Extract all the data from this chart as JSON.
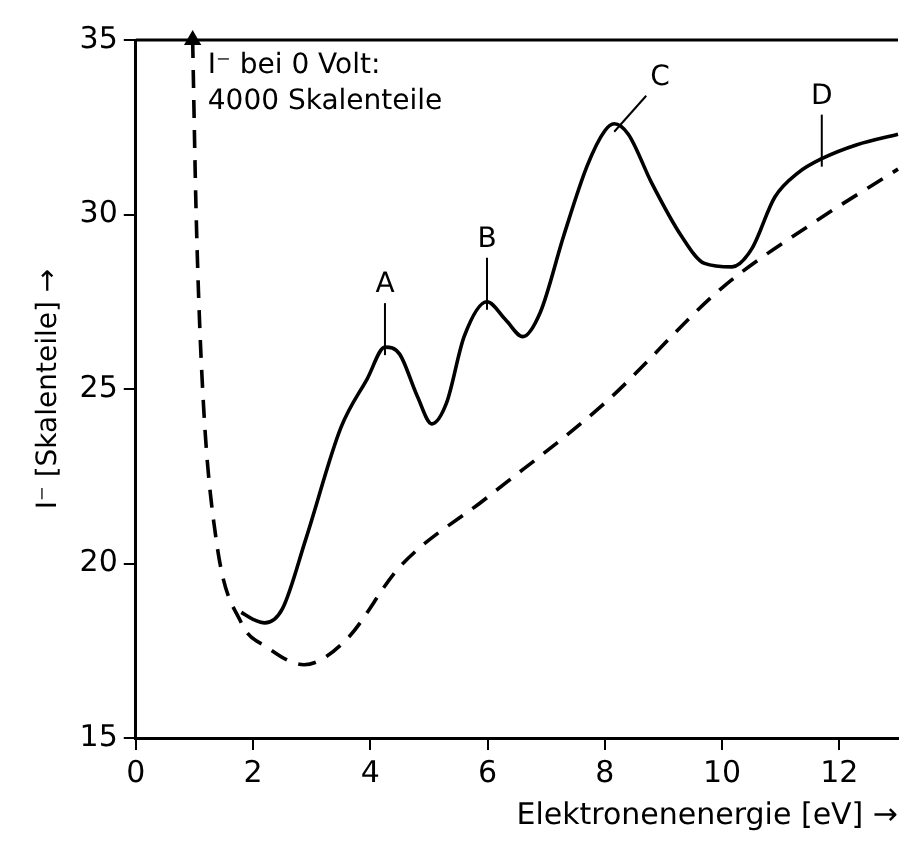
{
  "chart_data": {
    "type": "line",
    "xlabel": "Elektronenenergie [eV] →",
    "ylabel": "I⁻ [Skalenteile] →",
    "xlim": [
      0,
      13
    ],
    "xticks": [
      0,
      2,
      4,
      6,
      8,
      10,
      12
    ],
    "ylim": [
      15,
      35
    ],
    "yticks": [
      15,
      20,
      25,
      30,
      35
    ],
    "grid": false,
    "legend": false,
    "series": [
      {
        "color": "#000000",
        "line_style": "solid",
        "x": [
          1.8,
          2.0,
          2.2,
          2.5,
          2.9,
          3.5,
          3.95,
          4.25,
          4.5,
          4.8,
          5.05,
          5.3,
          5.6,
          5.99,
          6.3,
          6.6,
          6.9,
          7.3,
          7.7,
          8.0,
          8.16,
          8.4,
          8.8,
          9.3,
          9.7,
          10.17,
          10.5,
          10.9,
          11.3,
          11.7,
          12.3,
          13
        ],
        "values": [
          18.6,
          18.4,
          18.3,
          18.7,
          20.7,
          23.9,
          25.3,
          26.2,
          26.0,
          24.8,
          24.0,
          24.6,
          26.5,
          27.5,
          27.0,
          26.5,
          27.2,
          29.4,
          31.4,
          32.4,
          32.6,
          32.3,
          30.9,
          29.4,
          28.6,
          28.5,
          29.0,
          30.5,
          31.2,
          31.6,
          32.0,
          32.3
        ]
      },
      {
        "color": "#000000",
        "line_style": "dashed",
        "x": [
          0.97,
          1.03,
          1.14,
          1.37,
          1.8,
          2.24,
          2.87,
          3.58,
          4.5,
          6,
          8,
          10,
          11.5,
          13
        ],
        "values": [
          35,
          30,
          25,
          20.7,
          18.3,
          17.6,
          17.1,
          17.8,
          19.9,
          21.9,
          24.6,
          27.9,
          29.7,
          31.3
        ]
      }
    ],
    "annotations": [
      "I⁻ bei 0 Volt: 4000 Skalenteile",
      {
        "text": "A",
        "x": 4.25,
        "y": 26.2
      },
      {
        "text": "B",
        "x": 5.99,
        "y": 27.5
      },
      {
        "text": "C",
        "x": 8.16,
        "y": 32.6
      },
      {
        "text": "D",
        "x": 11.7,
        "y": 31.6
      }
    ]
  }
}
